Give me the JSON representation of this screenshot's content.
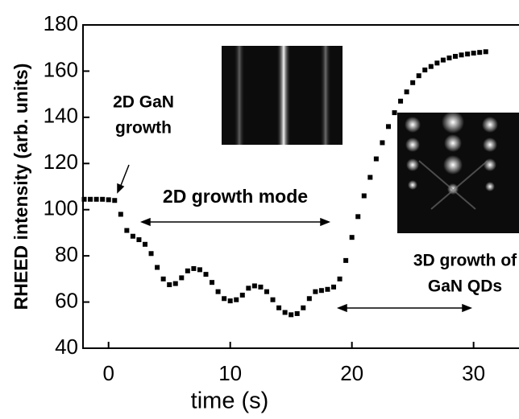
{
  "chart_data": {
    "type": "scatter",
    "x_label": "time (s)",
    "y_label": "RHEED intensity (arb. units)",
    "x": [
      -2,
      -1.5,
      -1,
      -0.5,
      0,
      0.5,
      1,
      1.5,
      2,
      2.5,
      3,
      3.5,
      4,
      4.5,
      5,
      5.5,
      6,
      6.5,
      7,
      7.5,
      8,
      8.5,
      9,
      9.5,
      10,
      10.5,
      11,
      11.5,
      12,
      12.5,
      13,
      13.5,
      14,
      14.5,
      15,
      15.5,
      16,
      16.5,
      17,
      17.5,
      18,
      18.5,
      19,
      19.5,
      20,
      20.5,
      21,
      21.5,
      22,
      22.5,
      23,
      23.5,
      24,
      24.5,
      25,
      25.5,
      26,
      26.5,
      27,
      27.5,
      28,
      28.5,
      29,
      29.5,
      30,
      30.5,
      31
    ],
    "values": [
      104.5,
      104.5,
      104.5,
      104.5,
      104.3,
      104,
      98,
      91,
      88.5,
      87,
      85,
      81,
      75,
      70,
      67.5,
      68,
      70.5,
      73.5,
      74.5,
      74,
      72,
      68.5,
      64.5,
      61.5,
      60.5,
      61,
      63,
      66,
      67,
      66.5,
      64.5,
      61,
      57.5,
      55.5,
      54.5,
      55,
      57.5,
      61.5,
      64.5,
      65,
      65.5,
      66.5,
      70,
      78,
      88,
      97,
      106,
      114,
      122,
      129,
      136,
      142,
      147,
      151,
      155,
      158,
      160.5,
      162,
      163.5,
      164.8,
      165.7,
      166.4,
      167,
      167.4,
      167.8,
      168.1,
      168.4
    ],
    "color": "#000000",
    "xlim": [
      -2.1,
      33.6
    ],
    "xticks": [
      0,
      10,
      20,
      30
    ],
    "ylim": [
      40,
      180
    ],
    "yticks": [
      40,
      60,
      80,
      100,
      120,
      140,
      160,
      180
    ],
    "annotations": [
      {
        "lines": [
          "2D GaN",
          "growth"
        ]
      },
      {
        "lines": [
          "2D growth mode"
        ]
      },
      {
        "lines": [
          "3D growth of",
          "GaN QDs"
        ]
      }
    ]
  }
}
